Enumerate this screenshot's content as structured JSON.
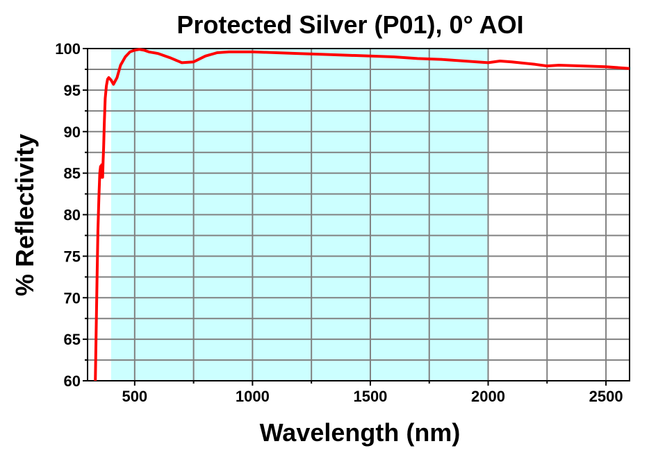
{
  "chart_data": {
    "type": "line",
    "title": "Protected Silver (P01), 0° AOI",
    "xlabel": "Wavelength (nm)",
    "ylabel": "% Reflectivity",
    "xlim": [
      300,
      2600
    ],
    "ylim": [
      60,
      100
    ],
    "x_ticks": [
      500,
      1000,
      1500,
      2000,
      2500
    ],
    "y_ticks": [
      60,
      65,
      70,
      75,
      80,
      85,
      90,
      95,
      100
    ],
    "grid": true,
    "legend": "none",
    "shaded_band": {
      "x_range": [
        400,
        2000
      ],
      "color": "#ccffff"
    },
    "colors": {
      "line": "#ff0000",
      "grid": "#808080",
      "axis": "#000000"
    },
    "series": [
      {
        "x": [
          330,
          333,
          336,
          340,
          344,
          348,
          352,
          355,
          358,
          360,
          362,
          364,
          366,
          368,
          371,
          375,
          380,
          385,
          390,
          400,
          410,
          425,
          440,
          460,
          480,
          500,
          520,
          540,
          560,
          600,
          650,
          700,
          750,
          800,
          850,
          900,
          950,
          1000,
          1100,
          1200,
          1300,
          1400,
          1500,
          1600,
          1700,
          1800,
          1900,
          2000,
          2050,
          2100,
          2200,
          2250,
          2300,
          2400,
          2500,
          2600
        ],
        "y": [
          55,
          60,
          65,
          72,
          78,
          82,
          85,
          85.8,
          84.5,
          86,
          85.2,
          84.5,
          86.5,
          88,
          91,
          94,
          95.5,
          96.3,
          96.5,
          96.2,
          95.7,
          96.5,
          98,
          99,
          99.6,
          99.8,
          99.9,
          99.8,
          99.6,
          99.4,
          98.9,
          98.3,
          98.4,
          99.1,
          99.5,
          99.6,
          99.6,
          99.6,
          99.5,
          99.4,
          99.3,
          99.2,
          99.1,
          99.0,
          98.8,
          98.7,
          98.5,
          98.3,
          98.5,
          98.4,
          98.1,
          97.9,
          98.0,
          97.9,
          97.8,
          97.6
        ]
      }
    ]
  }
}
